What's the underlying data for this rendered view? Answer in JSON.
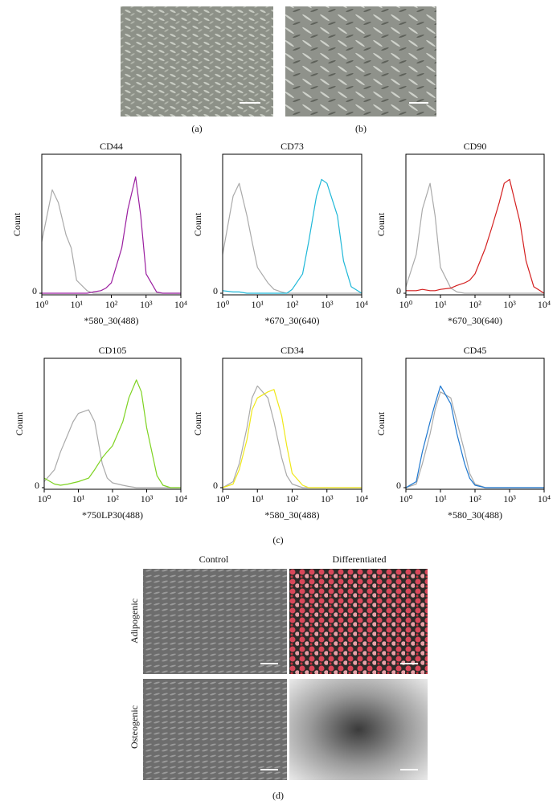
{
  "chart_data": [
    {
      "type": "line",
      "title": "CD44",
      "xlabel": "*580_30(488)",
      "ylabel": "Count",
      "xscale": "log",
      "xlim": [
        1,
        10000
      ],
      "xticks": [
        {
          "value": 1,
          "label": "10⁰"
        },
        {
          "value": 10,
          "label": "10¹"
        },
        {
          "value": 100,
          "label": "10²"
        },
        {
          "value": 1000,
          "label": "10³"
        },
        {
          "value": 10000,
          "label": "10⁴"
        }
      ],
      "ylim": [
        0,
        100
      ],
      "yticks": [
        0
      ],
      "x": [
        1,
        2,
        3,
        5,
        7,
        10,
        20,
        30,
        50,
        70,
        100,
        200,
        300,
        500,
        700,
        1000,
        2000,
        3000,
        5000,
        10000
      ],
      "series": [
        {
          "color": "#aaaaaa",
          "values": [
            40,
            80,
            70,
            45,
            35,
            10,
            2,
            0,
            0,
            0,
            0,
            0,
            0,
            0,
            0,
            0,
            0,
            0,
            0,
            0
          ]
        },
        {
          "color": "#9b1fa0",
          "values": [
            0,
            0,
            0,
            0,
            0,
            0,
            0,
            1,
            2,
            4,
            8,
            35,
            65,
            90,
            60,
            15,
            1,
            0,
            0,
            0
          ]
        }
      ]
    },
    {
      "type": "line",
      "title": "CD73",
      "xlabel": "*670_30(640)",
      "ylabel": "Count",
      "xscale": "log",
      "xlim": [
        1,
        10000
      ],
      "xticks": [
        {
          "value": 1,
          "label": "10⁰"
        },
        {
          "value": 10,
          "label": "10¹"
        },
        {
          "value": 100,
          "label": "10²"
        },
        {
          "value": 1000,
          "label": "10³"
        },
        {
          "value": 10000,
          "label": "10⁴"
        }
      ],
      "ylim": [
        0,
        100
      ],
      "yticks": [
        0
      ],
      "x": [
        1,
        2,
        3,
        5,
        7,
        10,
        20,
        30,
        50,
        70,
        100,
        200,
        300,
        500,
        700,
        1000,
        2000,
        3000,
        5000,
        10000
      ],
      "series": [
        {
          "color": "#aaaaaa",
          "values": [
            30,
            75,
            85,
            60,
            40,
            20,
            8,
            3,
            1,
            0,
            0,
            0,
            0,
            0,
            0,
            0,
            0,
            0,
            0,
            0
          ]
        },
        {
          "color": "#1fb8d8",
          "values": [
            2,
            1,
            1,
            0,
            0,
            0,
            0,
            0,
            0,
            0,
            3,
            15,
            40,
            75,
            88,
            85,
            60,
            25,
            5,
            0
          ]
        }
      ]
    },
    {
      "type": "line",
      "title": "CD90",
      "xlabel": "*670_30(640)",
      "ylabel": "Count",
      "xscale": "log",
      "xlim": [
        1,
        10000
      ],
      "xticks": [
        {
          "value": 1,
          "label": "10⁰"
        },
        {
          "value": 10,
          "label": "10¹"
        },
        {
          "value": 100,
          "label": "10²"
        },
        {
          "value": 1000,
          "label": "10³"
        },
        {
          "value": 10000,
          "label": "10⁴"
        }
      ],
      "ylim": [
        0,
        100
      ],
      "yticks": [
        0
      ],
      "x": [
        1,
        2,
        3,
        5,
        7,
        10,
        20,
        30,
        50,
        70,
        100,
        200,
        300,
        500,
        700,
        1000,
        2000,
        3000,
        5000,
        10000
      ],
      "series": [
        {
          "color": "#aaaaaa",
          "values": [
            5,
            30,
            65,
            85,
            60,
            20,
            4,
            1,
            0,
            0,
            0,
            0,
            0,
            0,
            0,
            0,
            0,
            0,
            0,
            0
          ]
        },
        {
          "color": "#d42020",
          "values": [
            2,
            2,
            3,
            2,
            2,
            3,
            4,
            6,
            8,
            10,
            15,
            35,
            50,
            70,
            85,
            88,
            55,
            25,
            5,
            0
          ]
        }
      ]
    },
    {
      "type": "line",
      "title": "CD105",
      "xlabel": "*750LP30(488)",
      "ylabel": "Count",
      "xscale": "log",
      "xlim": [
        1,
        10000
      ],
      "xticks": [
        {
          "value": 1,
          "label": "10⁰"
        },
        {
          "value": 10,
          "label": "10¹"
        },
        {
          "value": 100,
          "label": "10²"
        },
        {
          "value": 1000,
          "label": "10³"
        },
        {
          "value": 10000,
          "label": "10⁴"
        }
      ],
      "ylim": [
        0,
        100
      ],
      "yticks": [
        0
      ],
      "x": [
        1,
        2,
        3,
        5,
        7,
        10,
        20,
        30,
        50,
        70,
        100,
        200,
        300,
        500,
        700,
        1000,
        2000,
        3000,
        5000,
        10000
      ],
      "series": [
        {
          "color": "#aaaaaa",
          "values": [
            5,
            15,
            30,
            45,
            55,
            62,
            65,
            55,
            20,
            8,
            4,
            2,
            1,
            0,
            0,
            0,
            0,
            0,
            0,
            0
          ]
        },
        {
          "color": "#7ed321",
          "values": [
            8,
            3,
            2,
            3,
            4,
            5,
            8,
            15,
            25,
            30,
            35,
            55,
            75,
            90,
            80,
            50,
            10,
            2,
            0,
            0
          ]
        }
      ]
    },
    {
      "type": "line",
      "title": "CD34",
      "xlabel": "*580_30(488)",
      "ylabel": "Count",
      "xscale": "log",
      "xlim": [
        1,
        10000
      ],
      "xticks": [
        {
          "value": 1,
          "label": "10⁰"
        },
        {
          "value": 10,
          "label": "10¹"
        },
        {
          "value": 100,
          "label": "10²"
        },
        {
          "value": 1000,
          "label": "10³"
        },
        {
          "value": 10000,
          "label": "10⁴"
        }
      ],
      "ylim": [
        0,
        100
      ],
      "yticks": [
        0
      ],
      "x": [
        1,
        2,
        3,
        5,
        7,
        10,
        20,
        30,
        50,
        70,
        100,
        200,
        300,
        500,
        700,
        1000,
        2000,
        3000,
        5000,
        10000
      ],
      "series": [
        {
          "color": "#aaaaaa",
          "values": [
            0,
            5,
            20,
            50,
            75,
            85,
            75,
            55,
            25,
            10,
            3,
            0,
            0,
            0,
            0,
            0,
            0,
            0,
            0,
            0
          ]
        },
        {
          "color": "#f0e81a",
          "values": [
            0,
            3,
            15,
            40,
            65,
            75,
            80,
            82,
            60,
            35,
            12,
            2,
            0,
            0,
            0,
            0,
            0,
            0,
            0,
            0
          ]
        }
      ]
    },
    {
      "type": "line",
      "title": "CD45",
      "xlabel": "*580_30(488)",
      "ylabel": "Count",
      "xscale": "log",
      "xlim": [
        1,
        10000
      ],
      "xticks": [
        {
          "value": 1,
          "label": "10⁰"
        },
        {
          "value": 10,
          "label": "10¹"
        },
        {
          "value": 100,
          "label": "10²"
        },
        {
          "value": 1000,
          "label": "10³"
        },
        {
          "value": 10000,
          "label": "10⁴"
        }
      ],
      "ylim": [
        0,
        100
      ],
      "yticks": [
        0
      ],
      "x": [
        1,
        2,
        3,
        5,
        7,
        10,
        20,
        30,
        50,
        70,
        100,
        200,
        300,
        500,
        700,
        1000,
        2000,
        3000,
        5000,
        10000
      ],
      "series": [
        {
          "color": "#aaaaaa",
          "values": [
            0,
            3,
            20,
            45,
            65,
            80,
            75,
            55,
            30,
            12,
            3,
            0,
            0,
            0,
            0,
            0,
            0,
            0,
            0,
            0
          ]
        },
        {
          "color": "#1f78d0",
          "values": [
            0,
            5,
            30,
            55,
            70,
            85,
            70,
            45,
            20,
            8,
            2,
            0,
            0,
            0,
            0,
            0,
            0,
            0,
            0,
            0
          ]
        }
      ]
    }
  ],
  "figure": {
    "panel_a": "(a)",
    "panel_b": "(b)",
    "panel_c": "(c)",
    "panel_d": "(d)",
    "col_control": "Control",
    "col_differentiated": "Differentiated",
    "row_adipogenic": "Adipogenic",
    "row_osteogenic": "Osteogenic"
  }
}
